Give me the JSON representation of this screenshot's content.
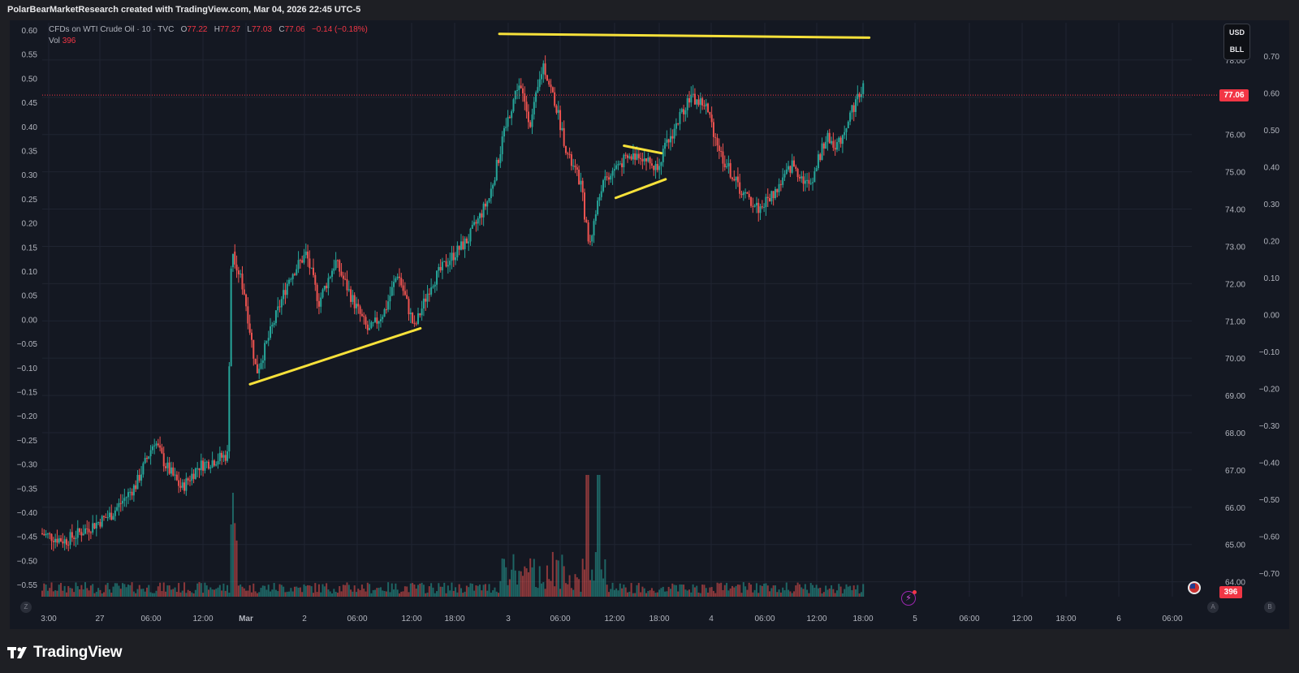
{
  "header": {
    "credit": "PolarBearMarketResearch created with TradingView.com, Mar 04, 2026 22:45 UTC-5"
  },
  "legend": {
    "symbol": "CFDs on WTI Crude Oil · 10 · TVC",
    "o_label": "O",
    "o_value": "77.22",
    "h_label": "H",
    "h_value": "77.27",
    "l_label": "L",
    "l_value": "77.03",
    "c_label": "C",
    "c_value": "77.06",
    "change": "−0.14 (−0.18%)",
    "vol_label": "Vol",
    "vol_value": "396"
  },
  "unit_selector": {
    "currency": "USD",
    "unit": "BLL"
  },
  "current_price": "77.06",
  "volume_tag": "396",
  "corner_buttons": {
    "left": "Z",
    "right_a": "A",
    "right_b": "B"
  },
  "footer": {
    "brand": "TradingView"
  },
  "colors": {
    "background": "#141822",
    "up": "#26a69a",
    "down": "#ef5350",
    "trendline": "#f7e13a",
    "price_line": "#f23645"
  },
  "chart_data": {
    "type": "candlestick",
    "symbol": "CFDs on WTI Crude Oil",
    "interval": "10",
    "price_axis": {
      "range": [
        63.6,
        79.0
      ],
      "ticks": [
        "64.00",
        "65.00",
        "66.00",
        "67.00",
        "68.00",
        "69.00",
        "70.00",
        "71.00",
        "72.00",
        "73.00",
        "74.00",
        "75.00",
        "76.00",
        "77.00",
        "78.00"
      ]
    },
    "left_axis": {
      "range": [
        -0.575,
        0.6
      ],
      "ticks": [
        "0.60",
        "0.55",
        "0.50",
        "0.45",
        "0.40",
        "0.35",
        "0.30",
        "0.25",
        "0.20",
        "0.15",
        "0.10",
        "0.05",
        "0.00",
        "−0.05",
        "−0.10",
        "−0.15",
        "−0.20",
        "−0.25",
        "−0.30",
        "−0.35",
        "−0.40",
        "−0.45",
        "−0.50",
        "−0.55"
      ]
    },
    "right_axis": {
      "range": [
        -0.75,
        0.7
      ],
      "ticks": [
        "0.70",
        "0.60",
        "0.50",
        "0.40",
        "0.30",
        "0.20",
        "0.10",
        "0.00",
        "−0.10",
        "−0.20",
        "−0.30",
        "−0.40",
        "−0.50",
        "−0.60",
        "−0.70"
      ]
    },
    "time_axis": {
      "ticks": [
        "3:00",
        "27",
        "06:00",
        "12:00",
        "Mar",
        "2",
        "06:00",
        "12:00",
        "18:00",
        "3",
        "06:00",
        "12:00",
        "18:00",
        "4",
        "06:00",
        "12:00",
        "18:00",
        "5",
        "06:00",
        "12:00",
        "18:00",
        "6",
        "06:00"
      ],
      "bold_ticks": [
        "Mar"
      ]
    },
    "price_path": [
      {
        "x": 0,
        "p": 65.3
      },
      {
        "x": 0.6,
        "p": 65.1
      },
      {
        "x": 1.0,
        "p": 65.35
      },
      {
        "x": 1.7,
        "p": 65.8
      },
      {
        "x": 2.3,
        "p": 66.6
      },
      {
        "x": 2.75,
        "p": 67.8
      },
      {
        "x": 3.0,
        "p": 67.15
      },
      {
        "x": 3.4,
        "p": 66.5
      },
      {
        "x": 3.8,
        "p": 67.1
      },
      {
        "x": 4.5,
        "p": 67.4
      },
      {
        "x": 4.6,
        "p": 73.0
      },
      {
        "x": 4.9,
        "p": 71.8
      },
      {
        "x": 5.2,
        "p": 69.6
      },
      {
        "x": 5.6,
        "p": 70.9
      },
      {
        "x": 6.0,
        "p": 72.2
      },
      {
        "x": 6.4,
        "p": 72.8
      },
      {
        "x": 6.7,
        "p": 71.5
      },
      {
        "x": 7.1,
        "p": 72.6
      },
      {
        "x": 7.5,
        "p": 71.6
      },
      {
        "x": 7.9,
        "p": 70.7
      },
      {
        "x": 8.3,
        "p": 71.3
      },
      {
        "x": 8.6,
        "p": 72.3
      },
      {
        "x": 9.0,
        "p": 70.8
      },
      {
        "x": 9.4,
        "p": 72.0
      },
      {
        "x": 9.8,
        "p": 72.6
      },
      {
        "x": 10.3,
        "p": 73.2
      },
      {
        "x": 10.8,
        "p": 74.3
      },
      {
        "x": 11.2,
        "p": 76.2
      },
      {
        "x": 11.5,
        "p": 77.4
      },
      {
        "x": 11.8,
        "p": 76.3
      },
      {
        "x": 12.1,
        "p": 77.9
      },
      {
        "x": 12.4,
        "p": 76.8
      },
      {
        "x": 12.7,
        "p": 75.4
      },
      {
        "x": 13.0,
        "p": 74.7
      },
      {
        "x": 13.2,
        "p": 73.0
      },
      {
        "x": 13.5,
        "p": 74.6
      },
      {
        "x": 13.9,
        "p": 75.2
      },
      {
        "x": 14.4,
        "p": 75.5
      },
      {
        "x": 14.8,
        "p": 75.1
      },
      {
        "x": 15.2,
        "p": 76.0
      },
      {
        "x": 15.6,
        "p": 77.0
      },
      {
        "x": 16.0,
        "p": 76.8
      },
      {
        "x": 16.4,
        "p": 75.4
      },
      {
        "x": 16.9,
        "p": 74.4
      },
      {
        "x": 17.3,
        "p": 74.0
      },
      {
        "x": 17.7,
        "p": 74.5
      },
      {
        "x": 18.1,
        "p": 75.2
      },
      {
        "x": 18.5,
        "p": 74.6
      },
      {
        "x": 18.9,
        "p": 75.9
      },
      {
        "x": 19.2,
        "p": 75.7
      },
      {
        "x": 19.5,
        "p": 76.6
      },
      {
        "x": 19.8,
        "p": 77.3
      }
    ],
    "last_close": 77.06,
    "trendlines": [
      {
        "from": {
          "x": 5.0,
          "p": 69.3
        },
        "to": {
          "x": 9.1,
          "p": 70.8
        }
      },
      {
        "from": {
          "x": 11.0,
          "p": 78.7
        },
        "to": {
          "x": 19.9,
          "p": 78.6
        }
      },
      {
        "from": {
          "x": 14.0,
          "p": 75.7
        },
        "to": {
          "x": 14.9,
          "p": 75.5
        }
      },
      {
        "from": {
          "x": 13.8,
          "p": 74.3
        },
        "to": {
          "x": 15.0,
          "p": 74.8
        }
      }
    ]
  }
}
